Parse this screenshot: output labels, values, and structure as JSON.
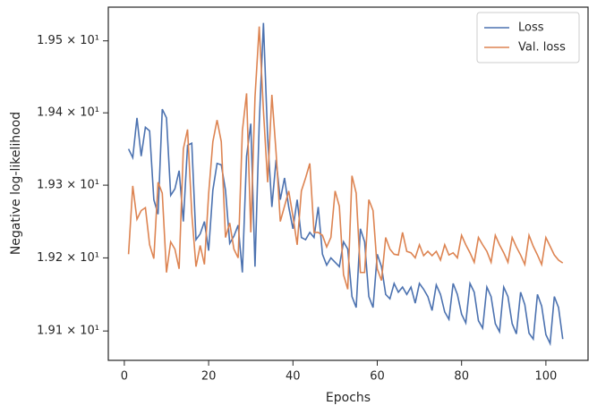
{
  "chart_data": {
    "type": "line",
    "xlabel": "Epochs",
    "ylabel": "Negative log-likelihood",
    "x": [
      1,
      2,
      3,
      4,
      5,
      6,
      7,
      8,
      9,
      10,
      11,
      12,
      13,
      14,
      15,
      16,
      17,
      18,
      19,
      20,
      21,
      22,
      23,
      24,
      25,
      26,
      27,
      28,
      29,
      30,
      31,
      32,
      33,
      34,
      35,
      36,
      37,
      38,
      39,
      40,
      41,
      42,
      43,
      44,
      45,
      46,
      47,
      48,
      49,
      50,
      51,
      52,
      53,
      54,
      55,
      56,
      57,
      58,
      59,
      60,
      61,
      62,
      63,
      64,
      65,
      66,
      67,
      68,
      69,
      70,
      71,
      72,
      73,
      74,
      75,
      76,
      77,
      78,
      79,
      80,
      81,
      82,
      83,
      84,
      85,
      86,
      87,
      88,
      89,
      90,
      91,
      92,
      93,
      94,
      95,
      96,
      97,
      98,
      99,
      100,
      101,
      102,
      103,
      104
    ],
    "series": [
      {
        "name": "Loss",
        "color": "#4c72b0",
        "values": [
          19.35,
          19.338,
          19.393,
          19.34,
          19.38,
          19.375,
          19.28,
          19.26,
          19.405,
          19.393,
          19.286,
          19.295,
          19.32,
          19.25,
          19.355,
          19.358,
          19.225,
          19.233,
          19.25,
          19.21,
          19.293,
          19.33,
          19.328,
          19.293,
          19.22,
          19.23,
          19.245,
          19.18,
          19.34,
          19.385,
          19.188,
          19.385,
          19.525,
          19.365,
          19.27,
          19.335,
          19.28,
          19.31,
          19.27,
          19.24,
          19.28,
          19.228,
          19.225,
          19.235,
          19.228,
          19.27,
          19.205,
          19.19,
          19.2,
          19.194,
          19.188,
          19.222,
          19.212,
          19.147,
          19.132,
          19.24,
          19.222,
          19.147,
          19.132,
          19.205,
          19.188,
          19.15,
          19.144,
          19.165,
          19.153,
          19.16,
          19.15,
          19.16,
          19.138,
          19.165,
          19.157,
          19.147,
          19.128,
          19.163,
          19.15,
          19.126,
          19.116,
          19.165,
          19.15,
          19.123,
          19.111,
          19.165,
          19.153,
          19.114,
          19.104,
          19.16,
          19.147,
          19.11,
          19.099,
          19.16,
          19.147,
          19.11,
          19.096,
          19.153,
          19.136,
          19.097,
          19.089,
          19.15,
          19.134,
          19.095,
          19.083,
          19.147,
          19.132,
          19.089
        ]
      },
      {
        "name": "Val. loss",
        "color": "#dd8452",
        "values": [
          19.205,
          19.299,
          19.253,
          19.265,
          19.269,
          19.218,
          19.199,
          19.304,
          19.289,
          19.18,
          19.222,
          19.212,
          19.185,
          19.35,
          19.377,
          19.261,
          19.188,
          19.217,
          19.191,
          19.288,
          19.36,
          19.39,
          19.36,
          19.228,
          19.248,
          19.212,
          19.2,
          19.375,
          19.427,
          19.235,
          19.422,
          19.52,
          19.403,
          19.304,
          19.425,
          19.345,
          19.25,
          19.271,
          19.292,
          19.257,
          19.218,
          19.292,
          19.31,
          19.33,
          19.235,
          19.235,
          19.231,
          19.215,
          19.228,
          19.292,
          19.271,
          19.177,
          19.157,
          19.313,
          19.289,
          19.18,
          19.18,
          19.28,
          19.265,
          19.185,
          19.169,
          19.228,
          19.212,
          19.205,
          19.204,
          19.235,
          19.209,
          19.207,
          19.2,
          19.218,
          19.203,
          19.209,
          19.203,
          19.209,
          19.197,
          19.218,
          19.204,
          19.207,
          19.2,
          19.231,
          19.218,
          19.207,
          19.194,
          19.228,
          19.218,
          19.209,
          19.194,
          19.231,
          19.218,
          19.207,
          19.194,
          19.228,
          19.215,
          19.204,
          19.191,
          19.231,
          19.216,
          19.204,
          19.191,
          19.228,
          19.216,
          19.204,
          19.197,
          19.193
        ]
      }
    ],
    "xlim": [
      -3.8,
      110
    ],
    "xticks": [
      0,
      20,
      40,
      60,
      80,
      100
    ],
    "ylim": [
      19.06,
      19.547
    ],
    "yscale": "log",
    "yticks": [
      {
        "value": 19.1,
        "label": "1.91 × 10¹"
      },
      {
        "value": 19.2,
        "label": "1.92 × 10¹"
      },
      {
        "value": 19.3,
        "label": "1.93 × 10¹"
      },
      {
        "value": 19.4,
        "label": "1.94 × 10¹"
      },
      {
        "value": 19.5,
        "label": "1.95 × 10¹"
      }
    ],
    "legend": "upper right"
  }
}
